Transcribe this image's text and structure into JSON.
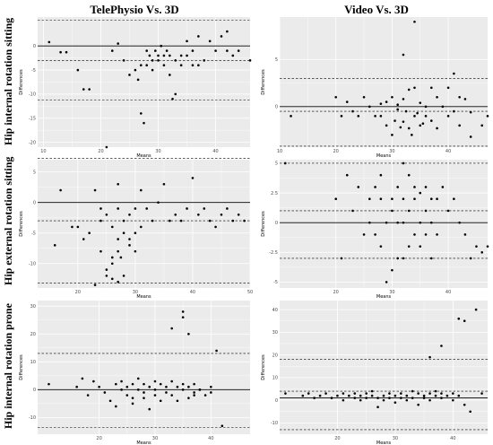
{
  "columns": [
    "TelePhysio Vs. 3D",
    "Video Vs. 3D"
  ],
  "rows": [
    "Hip internal rotation sitting",
    "Hip external rotation sitting",
    "Hip internal rotation prone"
  ],
  "colors": {
    "panel_bg": "#ebebeb",
    "grid": "#ffffff",
    "point": "#000000",
    "line": "#000000"
  },
  "chart_data": [
    {
      "type": "scatter",
      "title": "",
      "xlabel": "Means",
      "ylabel": "Differences",
      "xlim": [
        9,
        46
      ],
      "ylim": [
        -21,
        6
      ],
      "xticks": [
        10,
        20,
        30,
        40
      ],
      "yticks": [
        -20,
        -15,
        -10,
        -5,
        0
      ],
      "grid": true,
      "legend": "none",
      "hlines": [
        {
          "y": 0,
          "style": "solid"
        },
        {
          "y": -3,
          "style": "dashed"
        },
        {
          "y": -11.2,
          "style": "dashed"
        },
        {
          "y": 5.3,
          "style": "dashed"
        }
      ],
      "points": [
        [
          11,
          0.8
        ],
        [
          13,
          -1.3
        ],
        [
          14,
          -1.3
        ],
        [
          16,
          -5
        ],
        [
          17,
          -9
        ],
        [
          18,
          -9
        ],
        [
          21,
          -21
        ],
        [
          22,
          -1
        ],
        [
          23,
          0.5
        ],
        [
          24,
          -3
        ],
        [
          25,
          -6
        ],
        [
          26,
          -5
        ],
        [
          26.5,
          -7
        ],
        [
          27,
          -4
        ],
        [
          27,
          -14
        ],
        [
          27.5,
          -16
        ],
        [
          28,
          -4
        ],
        [
          28,
          -1
        ],
        [
          28.5,
          -2
        ],
        [
          29,
          -3
        ],
        [
          29,
          -5
        ],
        [
          29.5,
          -1
        ],
        [
          30,
          -2
        ],
        [
          30,
          -3
        ],
        [
          30.5,
          0
        ],
        [
          31,
          -2
        ],
        [
          31,
          -4
        ],
        [
          31.5,
          -1
        ],
        [
          32,
          -6
        ],
        [
          32,
          -2
        ],
        [
          32.5,
          -11
        ],
        [
          33,
          -10
        ],
        [
          33,
          -3
        ],
        [
          34,
          -2
        ],
        [
          34,
          -4
        ],
        [
          35,
          -2
        ],
        [
          35,
          1
        ],
        [
          36,
          -4
        ],
        [
          36,
          -1
        ],
        [
          37,
          2
        ],
        [
          37,
          -4
        ],
        [
          38,
          -3
        ],
        [
          39,
          1
        ],
        [
          40,
          -1
        ],
        [
          41,
          2
        ],
        [
          42,
          3
        ],
        [
          42,
          -1
        ],
        [
          43,
          -2
        ],
        [
          44,
          -1
        ],
        [
          46,
          -3
        ]
      ]
    },
    {
      "type": "scatter",
      "title": "",
      "xlabel": "Means",
      "ylabel": "Differences",
      "xlim": [
        10,
        47
      ],
      "ylim": [
        -4.3,
        9.5
      ],
      "xticks": [
        10,
        20,
        30,
        40
      ],
      "yticks": [
        0,
        5
      ],
      "grid": true,
      "legend": "none",
      "hlines": [
        {
          "y": 0,
          "style": "solid"
        },
        {
          "y": -0.5,
          "style": "dashed"
        },
        {
          "y": 3,
          "style": "dashed"
        },
        {
          "y": -4.2,
          "style": "dashed"
        }
      ],
      "points": [
        [
          12,
          -1
        ],
        [
          20,
          1
        ],
        [
          21,
          -1
        ],
        [
          22,
          0.5
        ],
        [
          23,
          -0.5
        ],
        [
          24,
          -1
        ],
        [
          25,
          1
        ],
        [
          26,
          0
        ],
        [
          27,
          -1
        ],
        [
          28,
          -1
        ],
        [
          28,
          0.3
        ],
        [
          29,
          0.5
        ],
        [
          29,
          -2
        ],
        [
          30,
          -3
        ],
        [
          30,
          1
        ],
        [
          30.5,
          -1.5
        ],
        [
          31,
          0.2
        ],
        [
          31,
          -0.3
        ],
        [
          31.5,
          -2.2
        ],
        [
          32,
          0.8
        ],
        [
          32,
          -1.6
        ],
        [
          32.5,
          -0.5
        ],
        [
          33,
          1.8
        ],
        [
          33,
          -2.3
        ],
        [
          33.5,
          -3
        ],
        [
          34,
          2
        ],
        [
          34,
          -1
        ],
        [
          34.5,
          -0.7
        ],
        [
          35,
          0.4
        ],
        [
          35,
          -2
        ],
        [
          35.5,
          -1.8
        ],
        [
          36,
          0
        ],
        [
          36,
          -1
        ],
        [
          37,
          2
        ],
        [
          37,
          -1.5
        ],
        [
          38,
          1
        ],
        [
          38,
          -2.3
        ],
        [
          39,
          0
        ],
        [
          40,
          2
        ],
        [
          40,
          -1
        ],
        [
          41,
          3.5
        ],
        [
          41,
          -0.5
        ],
        [
          42,
          1
        ],
        [
          42,
          -2
        ],
        [
          43,
          0.8
        ],
        [
          44,
          -3.2
        ],
        [
          44,
          -0.6
        ],
        [
          46,
          -2
        ],
        [
          47,
          -1
        ],
        [
          34,
          9
        ],
        [
          32,
          5.5
        ]
      ]
    },
    {
      "type": "scatter",
      "title": "",
      "xlabel": "Means",
      "ylabel": "Differences",
      "xlim": [
        13,
        50
      ],
      "ylim": [
        -14,
        7
      ],
      "xticks": [
        20,
        30,
        40,
        50
      ],
      "yticks": [
        -10,
        -5,
        0,
        5
      ],
      "grid": true,
      "legend": "none",
      "hlines": [
        {
          "y": 0,
          "style": "solid"
        },
        {
          "y": -3,
          "style": "dashed"
        },
        {
          "y": -13.2,
          "style": "dashed"
        },
        {
          "y": 7.2,
          "style": "dashed"
        }
      ],
      "points": [
        [
          16,
          -7
        ],
        [
          17,
          2
        ],
        [
          19,
          -4
        ],
        [
          20,
          -4
        ],
        [
          21,
          -6
        ],
        [
          22,
          -5
        ],
        [
          23,
          -13.5
        ],
        [
          24,
          -3
        ],
        [
          24,
          -8
        ],
        [
          25,
          -2
        ],
        [
          25,
          -11
        ],
        [
          25,
          -12
        ],
        [
          26,
          -4
        ],
        [
          26,
          -9
        ],
        [
          26,
          -10
        ],
        [
          26,
          -12.5
        ],
        [
          27,
          -1
        ],
        [
          27,
          -6
        ],
        [
          27,
          -8
        ],
        [
          27,
          -13
        ],
        [
          27.5,
          -9
        ],
        [
          28,
          -5
        ],
        [
          28,
          -3
        ],
        [
          28,
          -12
        ],
        [
          29,
          -6
        ],
        [
          29,
          -7
        ],
        [
          29,
          -2
        ],
        [
          30,
          -5
        ],
        [
          30,
          -1
        ],
        [
          30,
          -8
        ],
        [
          31,
          2
        ],
        [
          31,
          -4
        ],
        [
          32,
          -1
        ],
        [
          33,
          -3
        ],
        [
          34,
          0
        ],
        [
          35,
          3
        ],
        [
          36,
          -3
        ],
        [
          37,
          -2
        ],
        [
          38,
          -3
        ],
        [
          39,
          -1
        ],
        [
          40,
          4
        ],
        [
          41,
          -2
        ],
        [
          42,
          -1
        ],
        [
          43,
          -3
        ],
        [
          44,
          -4
        ],
        [
          45,
          -2
        ],
        [
          46,
          -1
        ],
        [
          47,
          -3
        ],
        [
          48,
          -2
        ],
        [
          49,
          -3
        ],
        [
          23,
          2
        ],
        [
          24,
          -1
        ],
        [
          27,
          3
        ]
      ]
    },
    {
      "type": "scatter",
      "title": "",
      "xlabel": "Means",
      "ylabel": "Differences",
      "xlim": [
        10,
        47
      ],
      "ylim": [
        -5.5,
        5.3
      ],
      "xticks": [
        20,
        30,
        40
      ],
      "yticks": [
        -5,
        -2.5,
        0,
        2.5,
        5
      ],
      "grid": true,
      "legend": "none",
      "hlines": [
        {
          "y": 0,
          "style": "solid"
        },
        {
          "y": 1,
          "style": "dashed"
        },
        {
          "y": -3,
          "style": "dashed"
        },
        {
          "y": 5,
          "style": "dashed"
        }
      ],
      "points": [
        [
          11,
          5
        ],
        [
          20,
          2
        ],
        [
          21,
          -3
        ],
        [
          22,
          4
        ],
        [
          23,
          1
        ],
        [
          24,
          3
        ],
        [
          25,
          -1
        ],
        [
          26,
          2
        ],
        [
          26,
          0
        ],
        [
          27,
          3
        ],
        [
          27,
          -1
        ],
        [
          28,
          2
        ],
        [
          28,
          -2
        ],
        [
          29,
          0
        ],
        [
          29,
          -5
        ],
        [
          30,
          2
        ],
        [
          30,
          -4
        ],
        [
          30,
          1
        ],
        [
          31,
          -3
        ],
        [
          31,
          3
        ],
        [
          31,
          0
        ],
        [
          32,
          2
        ],
        [
          32,
          -3
        ],
        [
          32,
          0
        ],
        [
          33,
          4
        ],
        [
          33,
          -2
        ],
        [
          33,
          1
        ],
        [
          34,
          2
        ],
        [
          34,
          -1
        ],
        [
          34,
          3
        ],
        [
          35,
          0
        ],
        [
          35,
          -2
        ],
        [
          35,
          2.5
        ],
        [
          36,
          1
        ],
        [
          36,
          -1
        ],
        [
          36,
          3
        ],
        [
          37,
          2
        ],
        [
          37,
          0
        ],
        [
          37,
          -3
        ],
        [
          38,
          2
        ],
        [
          38,
          -1
        ],
        [
          39,
          3
        ],
        [
          40,
          1
        ],
        [
          41,
          2
        ],
        [
          42,
          0
        ],
        [
          43,
          -1
        ],
        [
          44,
          -3
        ],
        [
          45,
          -2
        ],
        [
          46,
          -2.5
        ],
        [
          47,
          -2
        ],
        [
          28,
          4
        ],
        [
          32,
          5
        ]
      ]
    },
    {
      "type": "scatter",
      "title": "",
      "xlabel": "Means",
      "ylabel": "Differences",
      "xlim": [
        9,
        47
      ],
      "ylim": [
        -16,
        32
      ],
      "xticks": [
        20,
        30,
        40
      ],
      "yticks": [
        -10,
        0,
        10,
        20,
        30
      ],
      "grid": true,
      "legend": "none",
      "hlines": [
        {
          "y": 0,
          "style": "solid"
        },
        {
          "y": 13,
          "style": "dashed"
        },
        {
          "y": -13.5,
          "style": "dashed"
        }
      ],
      "points": [
        [
          11,
          2
        ],
        [
          16,
          1
        ],
        [
          17,
          4
        ],
        [
          18,
          -2
        ],
        [
          19,
          3
        ],
        [
          20,
          1
        ],
        [
          21,
          -1
        ],
        [
          22,
          -4
        ],
        [
          23,
          2
        ],
        [
          23,
          -6
        ],
        [
          24,
          3
        ],
        [
          24,
          0
        ],
        [
          25,
          -2
        ],
        [
          25,
          1
        ],
        [
          26,
          -3
        ],
        [
          26,
          2
        ],
        [
          26,
          -5
        ],
        [
          27,
          0
        ],
        [
          27,
          4
        ],
        [
          28,
          -1
        ],
        [
          28,
          2
        ],
        [
          28,
          -3
        ],
        [
          29,
          1
        ],
        [
          29,
          -7
        ],
        [
          30,
          0
        ],
        [
          30,
          3
        ],
        [
          30,
          -2
        ],
        [
          31,
          2
        ],
        [
          31,
          -4
        ],
        [
          32,
          1
        ],
        [
          32,
          -1
        ],
        [
          33,
          3
        ],
        [
          33,
          -2
        ],
        [
          34,
          -4
        ],
        [
          34,
          1
        ],
        [
          35,
          2
        ],
        [
          35,
          0
        ],
        [
          36,
          1
        ],
        [
          36,
          -3
        ],
        [
          37,
          2
        ],
        [
          37,
          -1
        ],
        [
          38,
          0
        ],
        [
          39,
          -2
        ],
        [
          40,
          1
        ],
        [
          40,
          -1
        ],
        [
          41,
          14
        ],
        [
          42,
          -13
        ],
        [
          33,
          22
        ],
        [
          35,
          26
        ],
        [
          35,
          28
        ],
        [
          36,
          20
        ],
        [
          37,
          -2
        ],
        [
          38,
          0
        ]
      ]
    },
    {
      "type": "scatter",
      "title": "",
      "xlabel": "Means",
      "ylabel": "Differences",
      "xlim": [
        10,
        46
      ],
      "ylim": [
        -15,
        44
      ],
      "xticks": [
        20,
        30,
        40
      ],
      "yticks": [
        -10,
        0,
        10,
        20,
        30,
        40
      ],
      "grid": true,
      "legend": "none",
      "hlines": [
        {
          "y": 1,
          "style": "solid"
        },
        {
          "y": 4,
          "style": "dashed"
        },
        {
          "y": 18,
          "style": "dashed"
        },
        {
          "y": -13,
          "style": "dashed"
        }
      ],
      "points": [
        [
          11,
          3
        ],
        [
          14,
          2
        ],
        [
          15,
          3
        ],
        [
          16,
          1
        ],
        [
          17,
          2
        ],
        [
          18,
          3
        ],
        [
          19,
          1
        ],
        [
          20,
          2
        ],
        [
          21,
          3
        ],
        [
          21,
          0
        ],
        [
          22,
          2
        ],
        [
          23,
          1
        ],
        [
          23,
          3
        ],
        [
          24,
          2
        ],
        [
          24,
          0
        ],
        [
          25,
          3
        ],
        [
          25,
          1
        ],
        [
          26,
          2
        ],
        [
          26,
          4
        ],
        [
          27,
          1
        ],
        [
          27,
          -3
        ],
        [
          28,
          2
        ],
        [
          28,
          0
        ],
        [
          29,
          3
        ],
        [
          29,
          1
        ],
        [
          30,
          2
        ],
        [
          30,
          -1
        ],
        [
          31,
          3
        ],
        [
          31,
          1
        ],
        [
          32,
          2
        ],
        [
          32,
          0
        ],
        [
          33,
          4
        ],
        [
          33,
          1
        ],
        [
          34,
          3
        ],
        [
          34,
          -2
        ],
        [
          35,
          2
        ],
        [
          35,
          1
        ],
        [
          36,
          3
        ],
        [
          36,
          0
        ],
        [
          37,
          2
        ],
        [
          37,
          4
        ],
        [
          38,
          1
        ],
        [
          38,
          3
        ],
        [
          39,
          2
        ],
        [
          40,
          0
        ],
        [
          40,
          3
        ],
        [
          41,
          2
        ],
        [
          42,
          -2
        ],
        [
          38,
          24
        ],
        [
          36,
          19
        ],
        [
          41,
          36
        ],
        [
          44,
          40
        ],
        [
          42,
          35
        ],
        [
          43,
          -5
        ],
        [
          45,
          3
        ]
      ]
    }
  ]
}
